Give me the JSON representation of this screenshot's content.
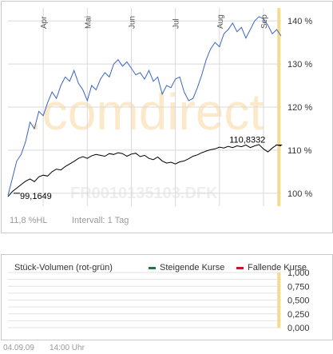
{
  "watermark": {
    "brand": ".comdirect",
    "isin": "FR0010135103.DFK"
  },
  "price_chart_footer": {
    "hl": "11,8 %HL",
    "interval": "Intervall: 1 Tag"
  },
  "volume_panel": {
    "title": "Stück-Volumen (rot-grün)",
    "legend_rising": "Steigende Kurse",
    "legend_falling": "Fallende Kurse"
  },
  "timestamp": {
    "date": "04.09.09",
    "time": "14:00 Uhr"
  },
  "colors": {
    "primary_line": "#3a64c8",
    "secondary_line": "#000000",
    "highlight": "#f5dc8c",
    "rising": "#1e7a3a",
    "falling": "#c41a1a",
    "grid": "#d9d9d9"
  },
  "chart_data": [
    {
      "type": "line",
      "x_unit": "month",
      "months": [
        "Apr",
        "Mai",
        "Jun",
        "Jul",
        "Aug",
        "Sep"
      ],
      "yticks": [
        "100 %",
        "110 %",
        "120 %",
        "130 %",
        "140 %"
      ],
      "ylim": [
        97,
        143
      ],
      "xlim": [
        2.2,
        8.4
      ],
      "annotations": [
        {
          "label": "99,1649",
          "x": 2.4,
          "y": 100.0
        },
        {
          "label": "110,8332",
          "x": 8.35,
          "y": 111.2
        }
      ],
      "highlight_x": 8.35,
      "series": [
        {
          "color": "#3a64c8",
          "x": [
            2.2,
            2.3,
            2.4,
            2.5,
            2.6,
            2.7,
            2.8,
            2.9,
            3.0,
            3.1,
            3.2,
            3.3,
            3.4,
            3.5,
            3.6,
            3.7,
            3.8,
            3.9,
            4.0,
            4.1,
            4.2,
            4.3,
            4.4,
            4.5,
            4.6,
            4.7,
            4.8,
            4.9,
            5.0,
            5.1,
            5.2,
            5.3,
            5.4,
            5.5,
            5.6,
            5.7,
            5.8,
            5.9,
            6.0,
            6.1,
            6.2,
            6.3,
            6.4,
            6.5,
            6.6,
            6.7,
            6.8,
            6.9,
            7.0,
            7.1,
            7.2,
            7.3,
            7.4,
            7.5,
            7.6,
            7.7,
            7.8,
            7.9,
            8.0,
            8.1,
            8.2,
            8.3,
            8.4
          ],
          "y": [
            99.5,
            103.5,
            107.5,
            109.0,
            112.0,
            116.5,
            115.0,
            119.0,
            118.0,
            121.0,
            123.5,
            122.0,
            125.0,
            127.0,
            126.0,
            128.5,
            125.5,
            124.0,
            121.5,
            125.0,
            124.0,
            126.5,
            128.0,
            127.0,
            130.0,
            131.0,
            129.5,
            130.5,
            129.0,
            127.5,
            128.0,
            126.5,
            128.5,
            126.0,
            127.0,
            123.0,
            125.0,
            124.5,
            126.5,
            127.0,
            123.5,
            121.5,
            122.0,
            124.5,
            127.5,
            131.0,
            133.5,
            135.0,
            134.0,
            137.0,
            138.0,
            139.5,
            137.5,
            138.5,
            136.0,
            138.0,
            140.0,
            141.0,
            140.5,
            139.0,
            137.0,
            138.0,
            136.5
          ]
        },
        {
          "color": "#000000",
          "x": [
            2.2,
            2.3,
            2.4,
            2.5,
            2.6,
            2.7,
            2.8,
            2.9,
            3.0,
            3.1,
            3.2,
            3.3,
            3.4,
            3.5,
            3.6,
            3.7,
            3.8,
            3.9,
            4.0,
            4.1,
            4.2,
            4.3,
            4.4,
            4.5,
            4.6,
            4.7,
            4.8,
            4.9,
            5.0,
            5.1,
            5.2,
            5.3,
            5.4,
            5.5,
            5.6,
            5.7,
            5.8,
            5.9,
            6.0,
            6.1,
            6.2,
            6.3,
            6.4,
            6.5,
            6.6,
            6.7,
            6.8,
            6.9,
            7.0,
            7.1,
            7.2,
            7.3,
            7.4,
            7.5,
            7.6,
            7.7,
            7.8,
            7.9,
            8.0,
            8.1,
            8.2,
            8.3,
            8.4
          ],
          "y": [
            99.2,
            100.4,
            101.2,
            102.0,
            102.8,
            103.3,
            102.7,
            103.8,
            104.2,
            104.0,
            105.0,
            105.6,
            105.4,
            106.2,
            106.8,
            107.4,
            108.1,
            108.5,
            108.1,
            108.7,
            109.0,
            108.8,
            108.6,
            109.2,
            109.0,
            109.4,
            109.2,
            108.6,
            109.1,
            109.3,
            108.5,
            108.8,
            108.1,
            107.8,
            108.4,
            107.5,
            107.0,
            107.2,
            106.8,
            107.3,
            107.5,
            108.0,
            108.6,
            108.9,
            109.4,
            109.8,
            110.1,
            110.3,
            110.7,
            110.5,
            110.9,
            110.6,
            111.0,
            110.8,
            111.2,
            110.6,
            111.0,
            111.3,
            110.3,
            109.6,
            110.5,
            111.2,
            111.0
          ]
        }
      ]
    },
    {
      "type": "bar",
      "yticks": [
        "1,000",
        "0,750",
        "0,500",
        "0,250",
        "0,000"
      ],
      "ylim": [
        0,
        1
      ],
      "values": []
    }
  ]
}
